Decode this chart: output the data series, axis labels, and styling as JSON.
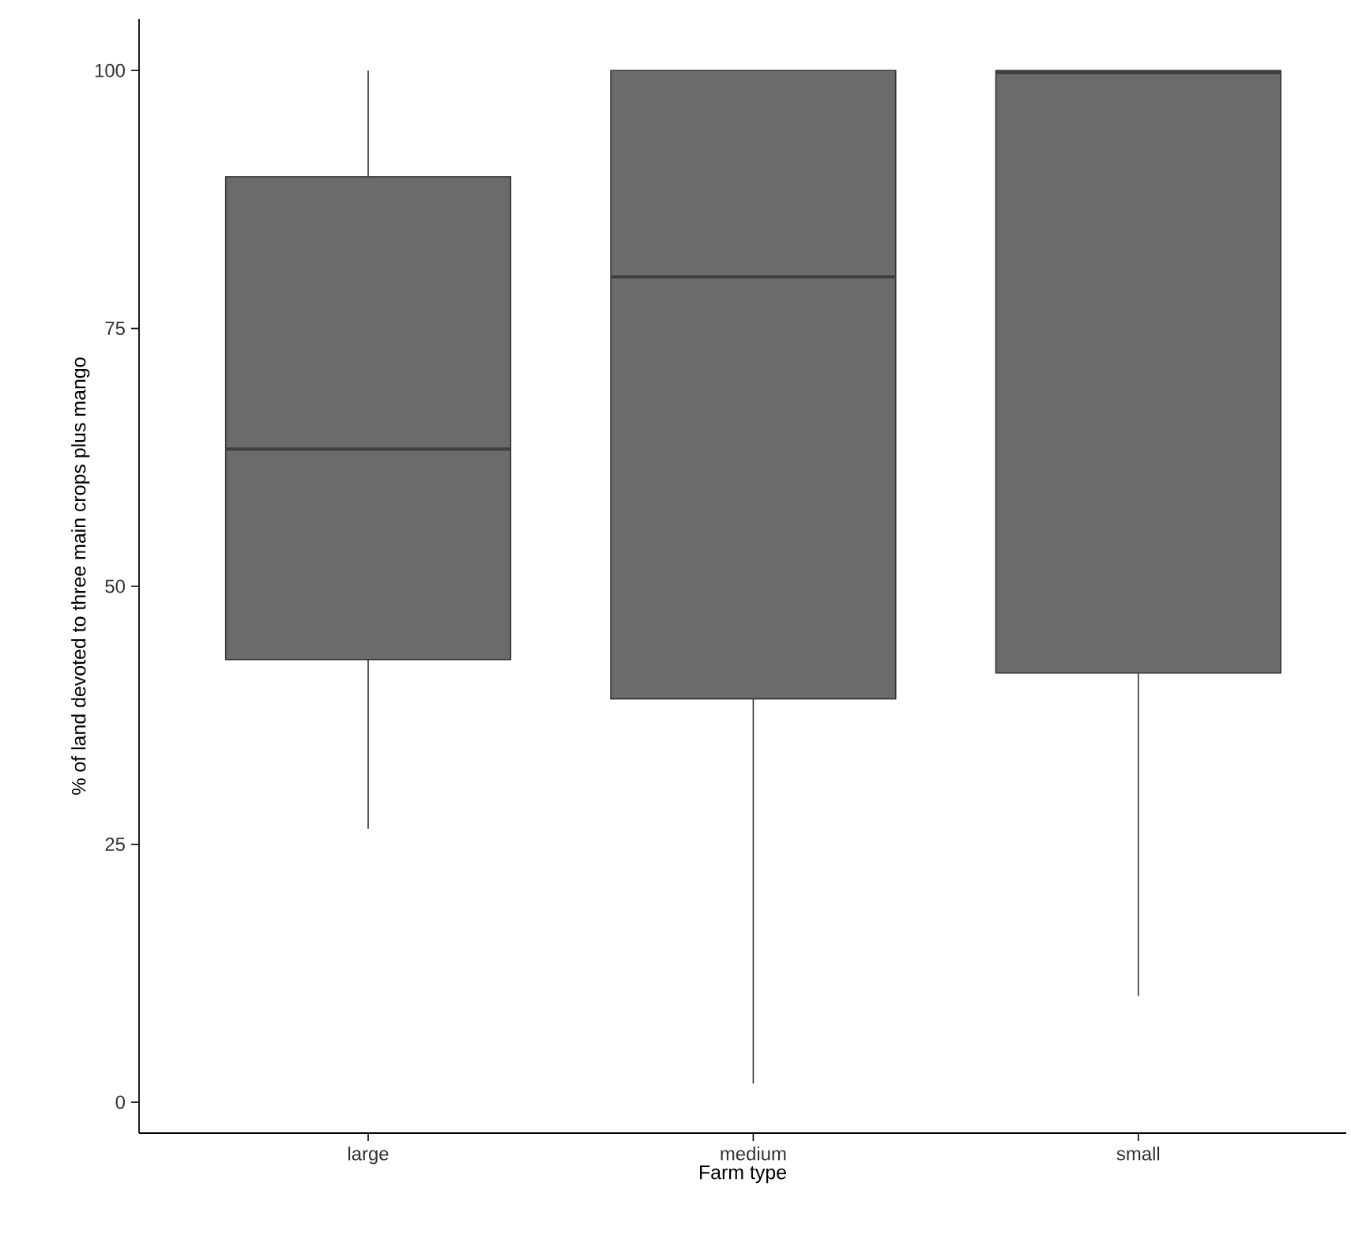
{
  "chart_data": {
    "type": "box",
    "xlabel": "Farm type",
    "ylabel": "% of land devoted to three main crops plus mango",
    "categories": [
      "large",
      "medium",
      "small"
    ],
    "color": "#6b6b6b",
    "boxes": [
      {
        "low": 26.5,
        "q1": 42.9,
        "median": 63.3,
        "q3": 89.7,
        "high": 100
      },
      {
        "low": 1.8,
        "q1": 39.1,
        "median": 80.0,
        "q3": 100,
        "high": 100
      },
      {
        "low": 10.3,
        "q1": 41.6,
        "median": 99.8,
        "q3": 100,
        "high": 100
      }
    ],
    "ylim": [
      -3,
      105
    ],
    "yticks": [
      0,
      25,
      50,
      75,
      100
    ],
    "grid": false
  }
}
